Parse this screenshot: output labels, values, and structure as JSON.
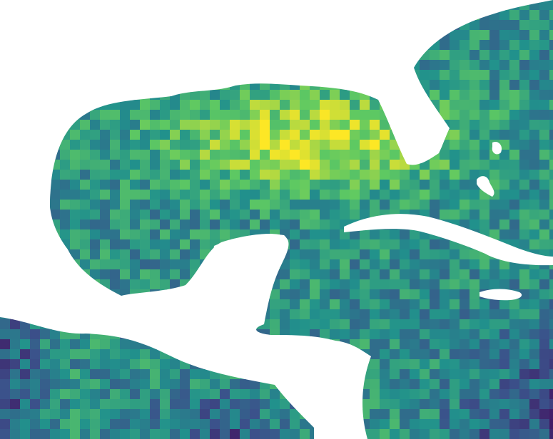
{
  "map": {
    "type": "raster-heatmap",
    "colormap": "viridis",
    "background": "#ffffff",
    "land_color": "#ffffff",
    "palette": [
      "#440154",
      "#3b528b",
      "#21918c",
      "#5ec962",
      "#fde725"
    ]
  },
  "chart_data": {
    "type": "heatmap",
    "title": "",
    "colormap": "viridis",
    "legend": "none"
  }
}
